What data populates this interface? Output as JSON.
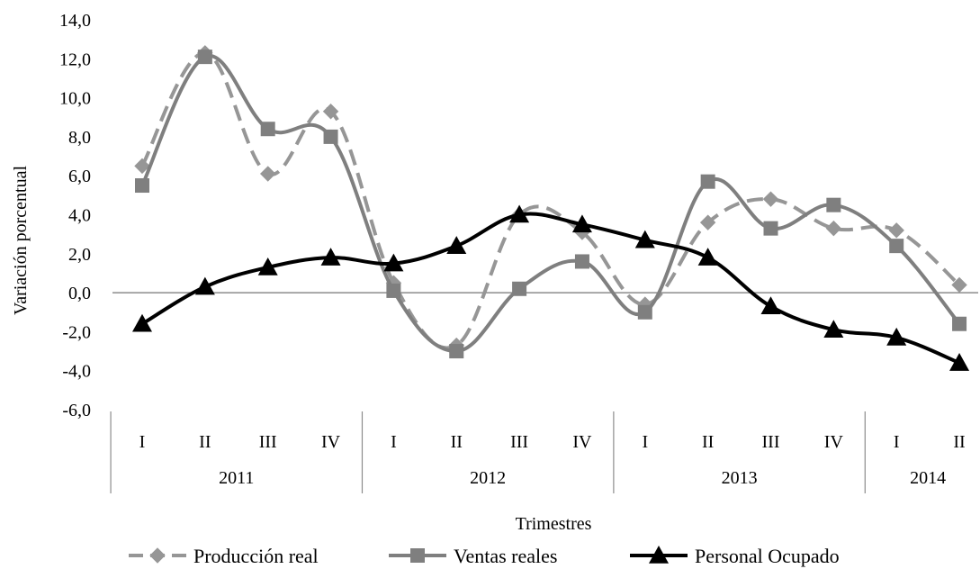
{
  "chart_data": {
    "type": "line",
    "title": "",
    "xlabel": "Trimestres",
    "ylabel": "Variación  porcentual",
    "ylim": [
      -6,
      14
    ],
    "ytick_step": 2,
    "ytick_labels": [
      "-6,0",
      "-4,0",
      "-2,0",
      "0,0",
      "2,0",
      "4,0",
      "6,0",
      "8,0",
      "10,0",
      "12,0",
      "14,0"
    ],
    "categories": [
      "I",
      "II",
      "III",
      "IV",
      "I",
      "II",
      "III",
      "IV",
      "I",
      "II",
      "III",
      "IV",
      "I",
      "II"
    ],
    "year_groups": [
      {
        "label": "2011",
        "count": 4
      },
      {
        "label": "2012",
        "count": 4
      },
      {
        "label": "2013",
        "count": 4
      },
      {
        "label": "2014",
        "count": 2
      }
    ],
    "grid": false,
    "legend_position": "bottom",
    "series": [
      {
        "name": "Producción real",
        "style": "dashed",
        "marker": "diamond",
        "color": "#969696",
        "values": [
          6.5,
          12.3,
          6.1,
          9.3,
          0.5,
          -2.7,
          4.0,
          3.1,
          -0.6,
          3.6,
          4.8,
          3.3,
          3.2,
          0.4
        ]
      },
      {
        "name": "Ventas reales",
        "style": "solid",
        "marker": "square",
        "color": "#7f7f7f",
        "values": [
          5.5,
          12.1,
          8.4,
          8.0,
          0.1,
          -3.0,
          0.2,
          1.6,
          -1.0,
          5.7,
          3.3,
          4.5,
          2.4,
          -1.6
        ]
      },
      {
        "name": "Personal Ocupado",
        "style": "solid",
        "marker": "triangle",
        "color": "#000000",
        "values": [
          -1.6,
          0.3,
          1.3,
          1.8,
          1.5,
          2.4,
          4.0,
          3.5,
          2.7,
          1.8,
          -0.7,
          -1.9,
          -2.3,
          -3.6
        ]
      }
    ]
  }
}
